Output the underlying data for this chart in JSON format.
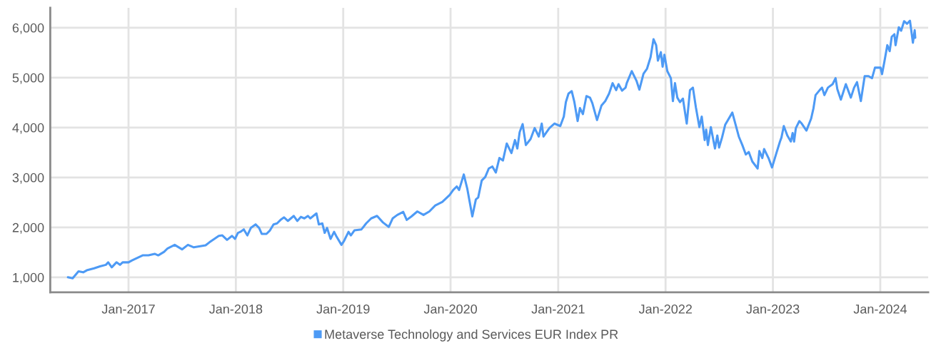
{
  "chart_data": {
    "type": "line",
    "xlim": [
      "2016-04-10",
      "2024-06-12"
    ],
    "xticks": [
      {
        "value": "2017-01-01",
        "label": "Jan-2017"
      },
      {
        "value": "2018-01-01",
        "label": "Jan-2018"
      },
      {
        "value": "2019-01-01",
        "label": "Jan-2019"
      },
      {
        "value": "2020-01-01",
        "label": "Jan-2020"
      },
      {
        "value": "2021-01-01",
        "label": "Jan-2021"
      },
      {
        "value": "2022-01-01",
        "label": "Jan-2022"
      },
      {
        "value": "2023-01-01",
        "label": "Jan-2023"
      },
      {
        "value": "2024-01-01",
        "label": "Jan-2024"
      }
    ],
    "ylim": [
      700,
      6400
    ],
    "yticks": [
      {
        "value": 1000,
        "label": "1,000"
      },
      {
        "value": 2000,
        "label": "2,000"
      },
      {
        "value": 3000,
        "label": "3,000"
      },
      {
        "value": 4000,
        "label": "4,000"
      },
      {
        "value": 5000,
        "label": "5,000"
      },
      {
        "value": 6000,
        "label": "6,000"
      }
    ],
    "grid": true,
    "legend": "bottom",
    "marker": "none",
    "line_style": "solid",
    "series": [
      {
        "name": "Metaverse Technology and Services EUR Index PR",
        "color": "#4d9af5",
        "x": [
          "2016-06-09",
          "2016-06-25",
          "2016-07-15",
          "2016-07-31",
          "2016-08-12",
          "2016-09-06",
          "2016-09-26",
          "2016-10-16",
          "2016-10-24",
          "2016-11-05",
          "2016-11-21",
          "2016-12-03",
          "2016-12-12",
          "2017-01-01",
          "2017-01-13",
          "2017-02-18",
          "2017-03-10",
          "2017-03-31",
          "2017-04-12",
          "2017-05-02",
          "2017-05-14",
          "2017-06-07",
          "2017-07-02",
          "2017-07-22",
          "2017-08-11",
          "2017-09-20",
          "2017-10-03",
          "2017-11-04",
          "2017-11-16",
          "2017-12-02",
          "2017-12-19",
          "2017-12-29",
          "2018-01-08",
          "2018-01-16",
          "2018-01-28",
          "2018-02-09",
          "2018-02-21",
          "2018-03-09",
          "2018-03-21",
          "2018-03-30",
          "2018-04-15",
          "2018-04-27",
          "2018-05-09",
          "2018-05-21",
          "2018-06-02",
          "2018-06-14",
          "2018-06-27",
          "2018-07-17",
          "2018-07-29",
          "2018-08-10",
          "2018-08-22",
          "2018-09-03",
          "2018-09-11",
          "2018-10-02",
          "2018-10-10",
          "2018-10-22",
          "2018-10-30",
          "2018-11-07",
          "2018-11-19",
          "2018-12-01",
          "2018-12-09",
          "2018-12-26",
          "2019-01-03",
          "2019-01-19",
          "2019-01-27",
          "2019-02-08",
          "2019-03-04",
          "2019-03-20",
          "2019-04-06",
          "2019-04-26",
          "2019-05-16",
          "2019-06-05",
          "2019-06-18",
          "2019-07-04",
          "2019-07-24",
          "2019-08-05",
          "2019-08-21",
          "2019-09-10",
          "2019-10-01",
          "2019-10-21",
          "2019-11-10",
          "2019-12-04",
          "2019-12-29",
          "2020-01-10",
          "2020-01-22",
          "2020-01-30",
          "2020-02-15",
          "2020-02-27",
          "2020-03-15",
          "2020-03-27",
          "2020-04-04",
          "2020-04-16",
          "2020-04-28",
          "2020-05-10",
          "2020-05-22",
          "2020-06-03",
          "2020-06-15",
          "2020-06-27",
          "2020-07-10",
          "2020-07-26",
          "2020-08-07",
          "2020-08-15",
          "2020-08-23",
          "2020-09-02",
          "2020-09-13",
          "2020-09-29",
          "2020-10-13",
          "2020-10-27",
          "2020-11-06",
          "2020-11-12",
          "2020-12-02",
          "2020-12-19",
          "2021-01-08",
          "2021-01-20",
          "2021-01-27",
          "2021-02-05",
          "2021-02-16",
          "2021-02-25",
          "2021-03-08",
          "2021-03-16",
          "2021-03-26",
          "2021-04-07",
          "2021-04-19",
          "2021-04-27",
          "2021-05-13",
          "2021-05-28",
          "2021-06-10",
          "2021-06-23",
          "2021-07-05",
          "2021-07-17",
          "2021-07-25",
          "2021-08-06",
          "2021-08-18",
          "2021-08-22",
          "2021-09-08",
          "2021-09-24",
          "2021-10-04",
          "2021-10-18",
          "2021-10-30",
          "2021-11-11",
          "2021-11-21",
          "2021-11-30",
          "2021-12-06",
          "2021-12-16",
          "2021-12-22",
          "2021-12-28",
          "2022-01-07",
          "2022-01-19",
          "2022-01-26",
          "2022-02-02",
          "2022-02-10",
          "2022-02-19",
          "2022-03-01",
          "2022-03-14",
          "2022-03-25",
          "2022-04-04",
          "2022-04-14",
          "2022-04-26",
          "2022-05-04",
          "2022-05-14",
          "2022-05-19",
          "2022-05-25",
          "2022-06-04",
          "2022-06-18",
          "2022-06-26",
          "2022-07-02",
          "2022-07-12",
          "2022-07-23",
          "2022-08-16",
          "2022-08-27",
          "2022-09-07",
          "2022-09-19",
          "2022-10-01",
          "2022-10-11",
          "2022-10-23",
          "2022-11-10",
          "2022-11-16",
          "2022-11-26",
          "2022-12-02",
          "2022-12-17",
          "2022-12-29",
          "2023-01-14",
          "2023-01-25",
          "2023-01-30",
          "2023-02-07",
          "2023-02-19",
          "2023-03-03",
          "2023-03-09",
          "2023-03-14",
          "2023-03-20",
          "2023-04-01",
          "2023-04-09",
          "2023-04-25",
          "2023-05-11",
          "2023-05-19",
          "2023-05-26",
          "2023-06-09",
          "2023-06-17",
          "2023-06-25",
          "2023-07-07",
          "2023-07-23",
          "2023-08-02",
          "2023-08-08",
          "2023-08-20",
          "2023-09-06",
          "2023-09-23",
          "2023-10-04",
          "2023-10-14",
          "2023-10-27",
          "2023-11-09",
          "2023-11-22",
          "2023-12-04",
          "2023-12-14",
          "2024-01-02",
          "2024-01-07",
          "2024-01-15",
          "2024-01-25",
          "2024-02-02",
          "2024-02-09",
          "2024-02-18",
          "2024-02-22",
          "2024-03-04",
          "2024-03-12",
          "2024-03-22",
          "2024-04-01",
          "2024-04-11",
          "2024-04-21",
          "2024-04-27",
          "2024-04-29"
        ],
        "values": [
          1000,
          980,
          1120,
          1100,
          1140,
          1180,
          1220,
          1250,
          1300,
          1200,
          1300,
          1250,
          1300,
          1300,
          1340,
          1440,
          1440,
          1470,
          1440,
          1510,
          1580,
          1650,
          1560,
          1650,
          1600,
          1640,
          1700,
          1830,
          1840,
          1750,
          1830,
          1770,
          1890,
          1910,
          1960,
          1840,
          1990,
          2060,
          1990,
          1870,
          1870,
          1940,
          2060,
          2080,
          2150,
          2200,
          2130,
          2230,
          2130,
          2210,
          2180,
          2230,
          2180,
          2280,
          2060,
          2080,
          1890,
          1990,
          1770,
          1910,
          1820,
          1650,
          1720,
          1910,
          1840,
          1940,
          1960,
          2080,
          2180,
          2230,
          2100,
          2010,
          2180,
          2250,
          2310,
          2150,
          2220,
          2320,
          2250,
          2320,
          2440,
          2510,
          2650,
          2750,
          2820,
          2750,
          3060,
          2770,
          2220,
          2560,
          2600,
          2940,
          3010,
          3180,
          3220,
          3100,
          3390,
          3340,
          3680,
          3490,
          3750,
          3580,
          3910,
          4070,
          3650,
          3770,
          3990,
          3820,
          4080,
          3820,
          3990,
          4080,
          4030,
          4220,
          4510,
          4680,
          4730,
          4510,
          4130,
          4390,
          4270,
          4630,
          4600,
          4490,
          4150,
          4440,
          4530,
          4680,
          4890,
          4750,
          4870,
          4740,
          4800,
          4890,
          5130,
          4940,
          4760,
          5080,
          5180,
          5410,
          5770,
          5650,
          5340,
          5510,
          5220,
          5460,
          5130,
          4990,
          4530,
          4890,
          4600,
          4510,
          4580,
          4080,
          4750,
          4800,
          4410,
          4010,
          4220,
          3750,
          3960,
          3650,
          4010,
          3580,
          3840,
          3600,
          3800,
          4060,
          4300,
          4060,
          3820,
          3650,
          3460,
          3510,
          3320,
          3180,
          3530,
          3390,
          3570,
          3390,
          3200,
          3510,
          3720,
          3800,
          4030,
          3840,
          3720,
          3890,
          3720,
          3990,
          4130,
          4080,
          3940,
          4180,
          4390,
          4650,
          4750,
          4800,
          4650,
          4800,
          4870,
          4990,
          4770,
          4560,
          4870,
          4600,
          4800,
          4910,
          4530,
          5030,
          5030,
          4990,
          5200,
          5200,
          5070,
          5320,
          5650,
          5530,
          5820,
          5870,
          5650,
          6010,
          5940,
          6130,
          6080,
          6140,
          5700,
          5950,
          5800
        ]
      }
    ]
  }
}
